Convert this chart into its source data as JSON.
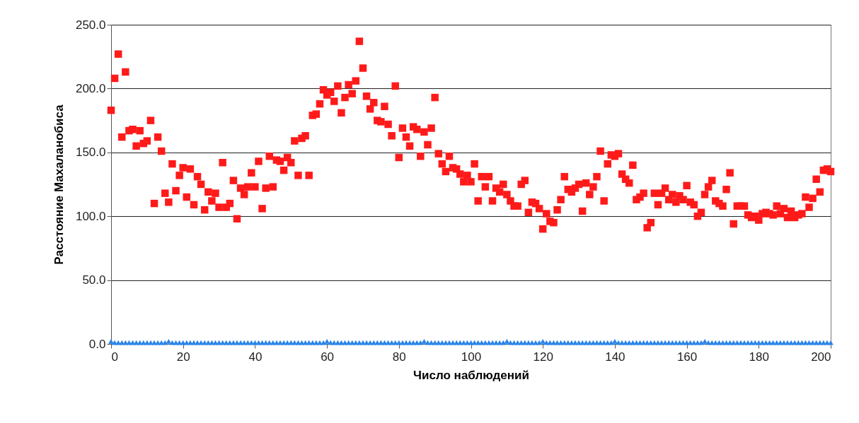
{
  "chart_data": {
    "type": "scatter",
    "xlabel": "Число наблюдений",
    "ylabel": "Расстояние Махаланобиса",
    "x": [
      0,
      1,
      2,
      3,
      4,
      5,
      6,
      7,
      8,
      9,
      10,
      11,
      12,
      13,
      14,
      15,
      16,
      17,
      18,
      19,
      20,
      21,
      22,
      23,
      24,
      25,
      26,
      27,
      28,
      29,
      30,
      31,
      32,
      33,
      34,
      35,
      36,
      37,
      38,
      39,
      40,
      41,
      42,
      43,
      44,
      45,
      46,
      47,
      48,
      49,
      50,
      51,
      52,
      53,
      54,
      55,
      56,
      57,
      58,
      59,
      60,
      61,
      62,
      63,
      64,
      65,
      66,
      67,
      68,
      69,
      70,
      71,
      72,
      73,
      74,
      75,
      76,
      77,
      78,
      79,
      80,
      81,
      82,
      83,
      84,
      85,
      86,
      87,
      88,
      89,
      90,
      91,
      92,
      93,
      94,
      95,
      96,
      97,
      98,
      99,
      100,
      101,
      102,
      103,
      104,
      105,
      106,
      107,
      108,
      109,
      110,
      111,
      112,
      113,
      114,
      115,
      116,
      117,
      118,
      119,
      120,
      121,
      122,
      123,
      124,
      125,
      126,
      127,
      128,
      129,
      130,
      131,
      132,
      133,
      134,
      135,
      136,
      137,
      138,
      139,
      140,
      141,
      142,
      143,
      144,
      145,
      146,
      147,
      148,
      149,
      150,
      151,
      152,
      153,
      154,
      155,
      156,
      157,
      158,
      159,
      160,
      161,
      162,
      163,
      164,
      165,
      166,
      167,
      168,
      169,
      170,
      171,
      172,
      173,
      174,
      175,
      176,
      177,
      178,
      179,
      180,
      181,
      182,
      183,
      184,
      185,
      186,
      187,
      188,
      189,
      190,
      191,
      192,
      193,
      194,
      195,
      196,
      197,
      198,
      199,
      200
    ],
    "series": [
      {
        "color": "#ff1a1a",
        "marker": "square",
        "values": [
          183,
          208,
          227,
          162,
          213,
          167,
          168,
          155,
          167,
          157,
          159,
          175,
          110,
          162,
          151,
          118,
          111,
          141,
          120,
          132,
          138,
          115,
          137,
          109,
          131,
          125,
          105,
          119,
          112,
          118,
          107,
          142,
          107,
          110,
          128,
          98,
          122,
          117,
          123,
          134,
          123,
          143,
          106,
          122,
          147,
          123,
          144,
          143,
          136,
          146,
          142,
          159,
          132,
          161,
          163,
          132,
          179,
          180,
          188,
          199,
          195,
          197,
          190,
          202,
          181,
          193,
          203,
          196,
          206,
          237,
          216,
          194,
          184,
          189,
          175,
          174,
          186,
          172,
          163,
          202,
          146,
          169,
          162,
          155,
          170,
          168,
          147,
          166,
          156,
          169,
          193,
          149,
          141,
          135,
          147,
          138,
          137,
          133,
          127,
          132,
          127,
          141,
          112,
          131,
          123,
          131,
          112,
          122,
          119,
          125,
          117,
          112,
          108,
          108,
          125,
          128,
          103,
          111,
          110,
          106,
          90,
          102,
          96,
          95,
          105,
          113,
          131,
          121,
          119,
          122,
          125,
          104,
          126,
          117,
          123,
          131,
          151,
          112,
          141,
          148,
          147,
          149,
          133,
          129,
          126,
          140,
          113,
          115,
          118,
          91,
          95,
          118,
          109,
          118,
          122,
          113,
          117,
          111,
          116,
          113,
          124,
          111,
          109,
          100,
          103,
          117,
          123,
          128,
          112,
          110,
          108,
          121,
          134,
          94,
          108,
          108,
          108,
          101,
          99,
          100,
          97,
          102,
          103,
          102,
          101,
          108,
          102,
          106,
          99,
          104,
          99,
          101,
          102,
          115,
          107,
          114,
          129,
          119,
          136,
          137,
          135
        ]
      },
      {
        "color": "#2a84e8",
        "marker": "triangle",
        "values": [
          2,
          1,
          1,
          1,
          1,
          1,
          1,
          1,
          1,
          1,
          1,
          1,
          1,
          1,
          1,
          1,
          2,
          1,
          1,
          1,
          1,
          1,
          1,
          1,
          1,
          1,
          1,
          1,
          1,
          1,
          1,
          1,
          1,
          1,
          1,
          1,
          1,
          1,
          1,
          1,
          1,
          1,
          1,
          1,
          1,
          1,
          1,
          1,
          1,
          1,
          1,
          1,
          1,
          1,
          1,
          1,
          1,
          1,
          1,
          1,
          2,
          1,
          1,
          1,
          1,
          1,
          1,
          1,
          1,
          1,
          1,
          1,
          1,
          1,
          1,
          1,
          1,
          1,
          1,
          1,
          1,
          1,
          1,
          1,
          1,
          1,
          1,
          2,
          1,
          1,
          1,
          1,
          1,
          1,
          1,
          1,
          1,
          1,
          1,
          1,
          1,
          1,
          1,
          1,
          1,
          1,
          1,
          1,
          1,
          1,
          2,
          1,
          1,
          1,
          1,
          1,
          1,
          1,
          1,
          1,
          2,
          1,
          1,
          1,
          1,
          1,
          1,
          1,
          1,
          1,
          1,
          1,
          1,
          1,
          1,
          1,
          1,
          1,
          1,
          1,
          2,
          1,
          1,
          1,
          1,
          1,
          1,
          1,
          1,
          1,
          1,
          1,
          1,
          1,
          1,
          1,
          1,
          1,
          1,
          1,
          1,
          1,
          1,
          1,
          1,
          2,
          1,
          1,
          1,
          1,
          1,
          1,
          1,
          1,
          1,
          1,
          1,
          1,
          1,
          1,
          1,
          1,
          1,
          1,
          1,
          1,
          1,
          1,
          1,
          1,
          1,
          1,
          1,
          1,
          1,
          1,
          1,
          1,
          1,
          1,
          1
        ]
      }
    ],
    "xlim": [
      0,
      200
    ],
    "xticks": [
      0,
      20,
      40,
      60,
      80,
      100,
      120,
      140,
      160,
      180,
      200
    ],
    "ylim": [
      0,
      250
    ],
    "yticks": [
      {
        "value": 0,
        "label": "0.0"
      },
      {
        "value": 50,
        "label": "50.0"
      },
      {
        "value": 100,
        "label": "100.0"
      },
      {
        "value": 150,
        "label": "150.0"
      },
      {
        "value": 200,
        "label": "200.0"
      },
      {
        "value": 250,
        "label": "250.0"
      }
    ],
    "grid": "y"
  }
}
